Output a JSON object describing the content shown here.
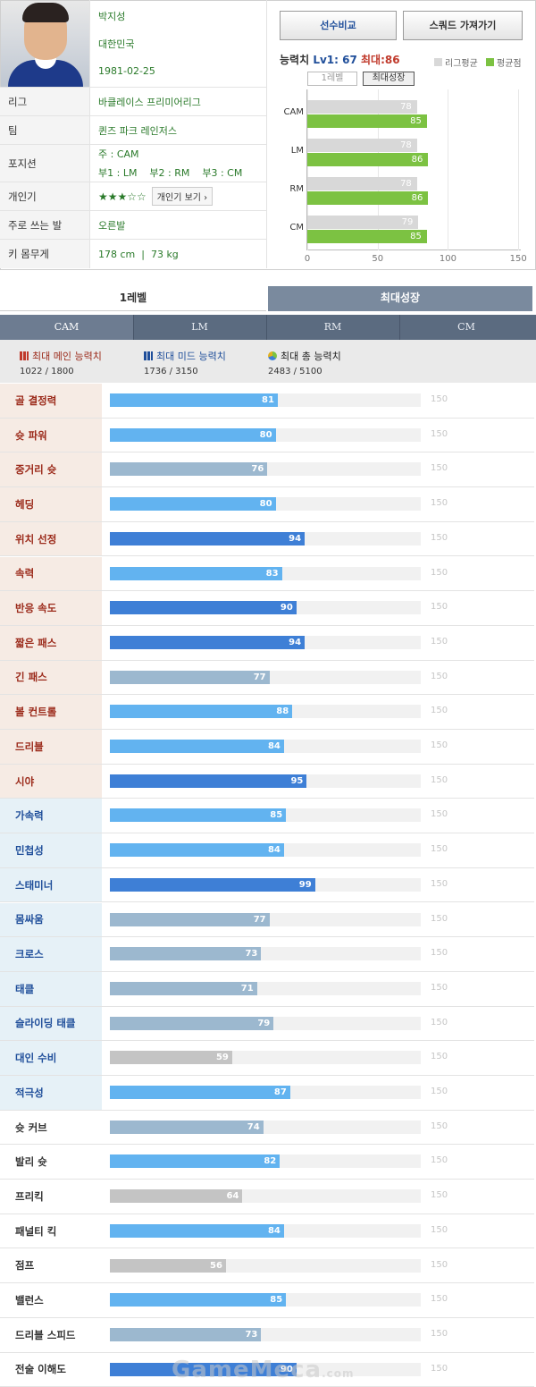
{
  "player": {
    "name": "박지성",
    "nation": "대한민국",
    "birth": "1981-02-25"
  },
  "info_rows": [
    {
      "label": "리그",
      "value": "바클레이스 프리미어리그"
    },
    {
      "label": "팀",
      "value": "퀸즈 파크 레인저스"
    },
    {
      "label": "포지션",
      "value_line1": "주 : CAM",
      "value_line2": "부1 : LM    부2 : RM    부3 : CM"
    },
    {
      "label": "개인기",
      "stars": "★★★☆☆",
      "button": "개인기 보기 ›"
    },
    {
      "label": "주로 쓰는 발",
      "value": "오른발"
    },
    {
      "label": "키 몸무게",
      "value": "178 cm  |  73 kg"
    }
  ],
  "buttons": {
    "compare": "선수비교",
    "squad": "스쿼드 가져가기"
  },
  "ability": {
    "label": "능력치",
    "lv": "Lv1: 67",
    "max": "최대:86"
  },
  "legend": {
    "league_avg": "리그평균",
    "avg": "평균점"
  },
  "mini_tabs": {
    "level1": "1레벨",
    "max_growth": "최대성장"
  },
  "colors": {
    "league_avg": "#d8d8d8",
    "avg": "#7cc242",
    "accent": "#1f4e9a",
    "max_red": "#c0392b"
  },
  "chart_data": {
    "type": "bar",
    "orientation": "horizontal",
    "categories": [
      "CAM",
      "LM",
      "RM",
      "CM"
    ],
    "series": [
      {
        "name": "리그평균",
        "values": [
          78,
          78,
          78,
          79
        ]
      },
      {
        "name": "평균점",
        "values": [
          85,
          86,
          86,
          85
        ]
      }
    ],
    "xlim": [
      0,
      150
    ],
    "xticks": [
      0,
      50,
      100,
      150
    ],
    "grid": true,
    "legend": "top-right"
  },
  "level_tabs": {
    "level1": "1레벨",
    "max_growth": "최대성장"
  },
  "position_tabs": [
    "CAM",
    "LM",
    "RM",
    "CM"
  ],
  "summary": {
    "main": {
      "title": "최대 메인 능력치",
      "value": "1022 / 1800"
    },
    "mid": {
      "title": "최대 미드 능력치",
      "value": "1736 / 3150"
    },
    "total": {
      "title": "최대 총 능력치",
      "value": "2483 / 5100"
    }
  },
  "stats_max": 150,
  "stats": [
    {
      "name": "골 결정력",
      "value": 81,
      "group": "main"
    },
    {
      "name": "슛 파워",
      "value": 80,
      "group": "main"
    },
    {
      "name": "중거리 슛",
      "value": 76,
      "group": "main"
    },
    {
      "name": "헤딩",
      "value": 80,
      "group": "main"
    },
    {
      "name": "위치 선정",
      "value": 94,
      "group": "main"
    },
    {
      "name": "속력",
      "value": 83,
      "group": "main"
    },
    {
      "name": "반응 속도",
      "value": 90,
      "group": "main"
    },
    {
      "name": "짧은 패스",
      "value": 94,
      "group": "main"
    },
    {
      "name": "긴 패스",
      "value": 77,
      "group": "main"
    },
    {
      "name": "볼 컨트롤",
      "value": 88,
      "group": "main"
    },
    {
      "name": "드리블",
      "value": 84,
      "group": "main"
    },
    {
      "name": "시야",
      "value": 95,
      "group": "main"
    },
    {
      "name": "가속력",
      "value": 85,
      "group": "mid"
    },
    {
      "name": "민첩성",
      "value": 84,
      "group": "mid"
    },
    {
      "name": "스태미너",
      "value": 99,
      "group": "mid"
    },
    {
      "name": "몸싸움",
      "value": 77,
      "group": "mid"
    },
    {
      "name": "크로스",
      "value": 73,
      "group": "mid"
    },
    {
      "name": "태클",
      "value": 71,
      "group": "mid"
    },
    {
      "name": "슬라이딩 태클",
      "value": 79,
      "group": "mid"
    },
    {
      "name": "대인 수비",
      "value": 59,
      "group": "mid"
    },
    {
      "name": "적극성",
      "value": 87,
      "group": "mid"
    },
    {
      "name": "슛 커브",
      "value": 74,
      "group": "base"
    },
    {
      "name": "발리 슛",
      "value": 82,
      "group": "base"
    },
    {
      "name": "프리킥",
      "value": 64,
      "group": "base"
    },
    {
      "name": "패널티 킥",
      "value": 84,
      "group": "base"
    },
    {
      "name": "점프",
      "value": 56,
      "group": "base"
    },
    {
      "name": "밸런스",
      "value": 85,
      "group": "base"
    },
    {
      "name": "드리블 스피드",
      "value": 73,
      "group": "base"
    },
    {
      "name": "전술 이해도",
      "value": 90,
      "group": "base"
    }
  ],
  "watermark": "GameMeca",
  "watermark_suffix": ".com"
}
